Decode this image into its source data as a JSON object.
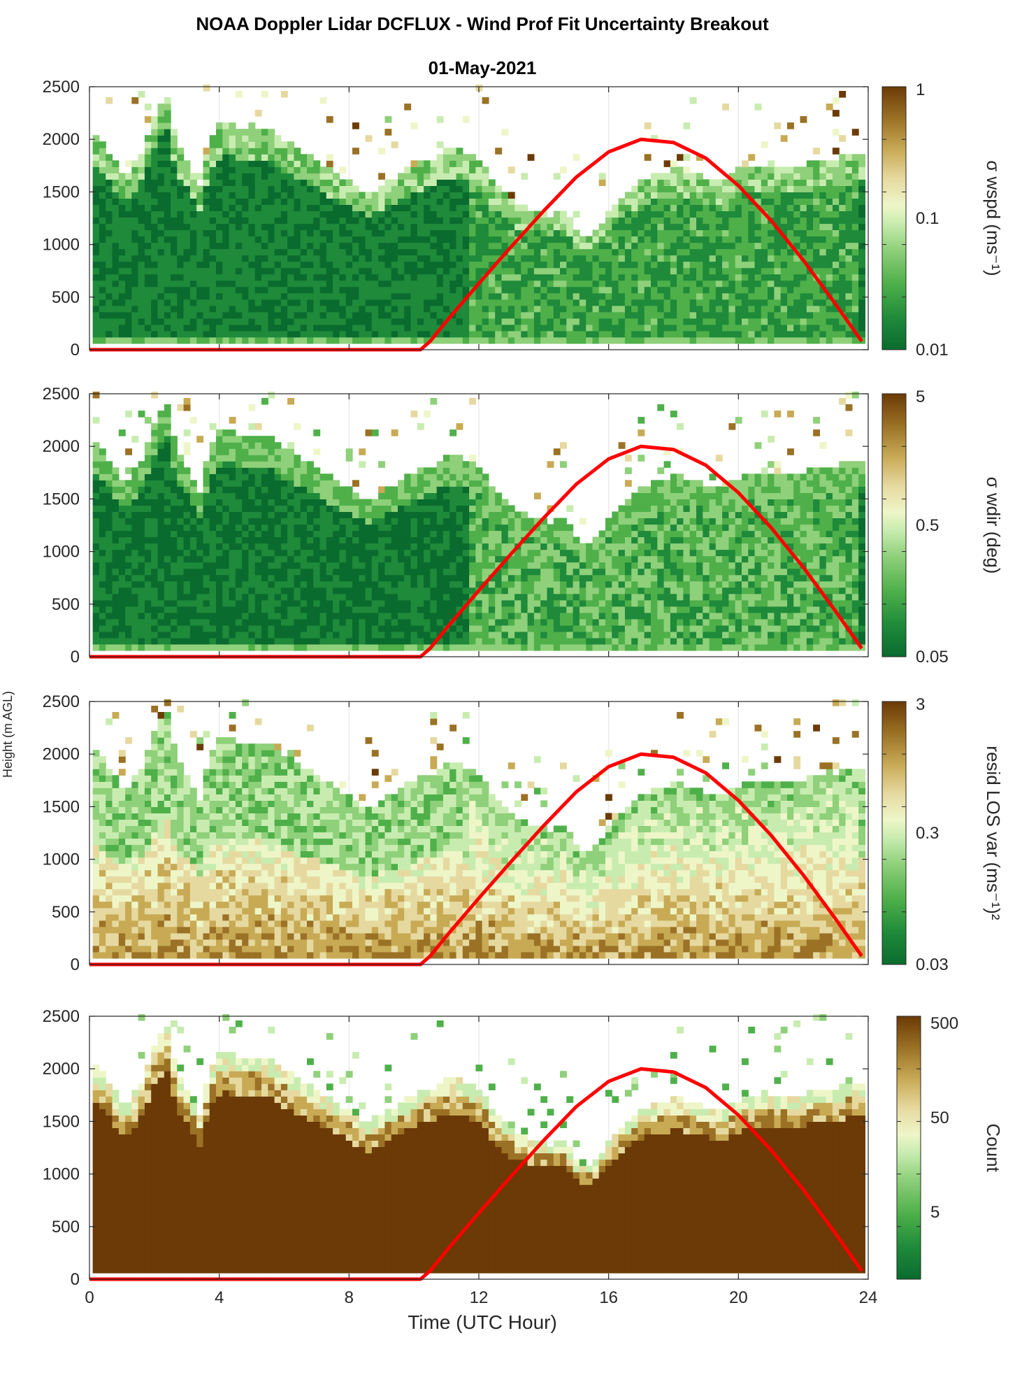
{
  "title": "NOAA Doppler Lidar DCFLUX - Wind Prof Fit Uncertainty Breakout",
  "subtitle": "01-May-2021",
  "chart_data": [
    {
      "type": "heatmap",
      "name": "wspd-uncertainty",
      "colorbar_label": "σ wspd (ms⁻¹)",
      "colorbar_ticks": [
        "1",
        "0.1",
        "0.01"
      ],
      "colorbar_scale": "log",
      "colorbar_range": [
        0.01,
        1
      ],
      "xlim": [
        0,
        24
      ],
      "ylim": [
        0,
        2500
      ],
      "xticks": [
        "0",
        "4",
        "8",
        "12",
        "16",
        "20",
        "24"
      ],
      "yticks": [
        "0",
        "500",
        "1000",
        "1500",
        "2000",
        "2500"
      ],
      "typical_value": "dark green (0.01–0.03) below cloud/aerosol top, lighter green aloft"
    },
    {
      "type": "heatmap",
      "name": "wdir-uncertainty",
      "colorbar_label": "σ wdir (deg)",
      "colorbar_ticks": [
        "5",
        "0.5",
        "0.05"
      ],
      "colorbar_scale": "log",
      "colorbar_range": [
        0.05,
        5
      ],
      "xlim": [
        0,
        24
      ],
      "ylim": [
        0,
        2500
      ],
      "xticks": [
        "0",
        "4",
        "8",
        "12",
        "16",
        "20",
        "24"
      ],
      "yticks": [
        "0",
        "500",
        "1000",
        "1500",
        "2000",
        "2500"
      ]
    },
    {
      "type": "heatmap",
      "name": "residual-los-variance",
      "colorbar_label": "resid LOS var (ms⁻¹)²",
      "colorbar_ticks": [
        "3",
        "0.3",
        "0.03"
      ],
      "colorbar_scale": "log",
      "colorbar_range": [
        0.03,
        3
      ],
      "xlim": [
        0,
        24
      ],
      "ylim": [
        0,
        2500
      ],
      "xticks": [
        "0",
        "4",
        "8",
        "12",
        "16",
        "20",
        "24"
      ],
      "yticks": [
        "0",
        "500",
        "1000",
        "1500",
        "2000",
        "2500"
      ]
    },
    {
      "type": "heatmap",
      "name": "count",
      "colorbar_label": "Count",
      "colorbar_ticks": [
        "500",
        "50",
        "5"
      ],
      "colorbar_scale": "log",
      "colorbar_range": [
        1,
        500
      ],
      "xlim": [
        0,
        24
      ],
      "ylim": [
        0,
        2500
      ],
      "xticks": [
        "0",
        "4",
        "8",
        "12",
        "16",
        "20",
        "24"
      ],
      "yticks": [
        "0",
        "500",
        "1000",
        "1500",
        "2000",
        "2500"
      ],
      "xlabel": "Time (UTC Hour)"
    }
  ],
  "shared": {
    "ylabel": "Height (m AGL)",
    "xlabel": "Time (UTC Hour)",
    "data_top_height_m": {
      "x": [
        0.1,
        0.5,
        1.0,
        1.5,
        2.0,
        2.3,
        2.6,
        3.0,
        3.3,
        3.6,
        4.0,
        4.5,
        5.0,
        5.5,
        6.0,
        6.5,
        7.0,
        7.5,
        8.0,
        8.5,
        9.0,
        9.5,
        10.0,
        10.5,
        11.0,
        11.5,
        12.0,
        12.5,
        13.0,
        13.5,
        14.0,
        14.5,
        15.0,
        15.5,
        16.0,
        16.5,
        17.0,
        17.5,
        18.0,
        18.5,
        19.0,
        19.5,
        20.0,
        20.5,
        21.0,
        21.5,
        22.0,
        22.5,
        23.0,
        23.5,
        23.8
      ],
      "y": [
        2000,
        1850,
        1600,
        1850,
        2300,
        2400,
        1900,
        1750,
        1500,
        1950,
        2150,
        2100,
        2100,
        2050,
        1950,
        1850,
        1750,
        1650,
        1550,
        1450,
        1550,
        1650,
        1750,
        1800,
        1900,
        1850,
        1750,
        1500,
        1350,
        1300,
        1250,
        1300,
        1050,
        1100,
        1350,
        1500,
        1600,
        1650,
        1700,
        1650,
        1600,
        1600,
        1700,
        1700,
        1700,
        1700,
        1750,
        1800,
        1800,
        1850,
        1850
      ]
    },
    "solar_elevation_curve": {
      "x": [
        0,
        10.2,
        10.5,
        11,
        12,
        13,
        14,
        15,
        16,
        17,
        18,
        19,
        20,
        21,
        22,
        23,
        23.8
      ],
      "y": [
        0,
        0,
        80,
        270,
        630,
        980,
        1320,
        1640,
        1880,
        2000,
        1970,
        1820,
        1560,
        1230,
        850,
        430,
        80
      ],
      "color": "#ff0000"
    }
  },
  "colormap": [
    "#0a6b2e",
    "#1e8a3a",
    "#4fb04a",
    "#8fd07a",
    "#c8ecb0",
    "#eef6c8",
    "#e6d9a0",
    "#c8aa55",
    "#9a7125",
    "#6b3a06"
  ]
}
